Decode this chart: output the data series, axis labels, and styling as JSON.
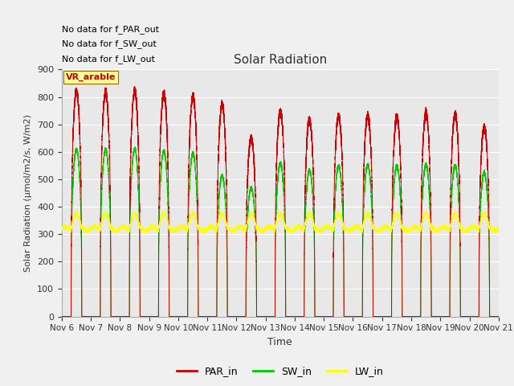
{
  "title": "Solar Radiation",
  "xlabel": "Time",
  "ylabel": "Solar Radiation (μmol/m2/s, W/m2)",
  "ylim": [
    0,
    900
  ],
  "num_days": 15,
  "x_tick_labels": [
    "Nov 6",
    "Nov 7",
    "Nov 8",
    "Nov 9",
    "Nov 10",
    "Nov 11",
    "Nov 12",
    "Nov 13",
    "Nov 14",
    "Nov 15",
    "Nov 16",
    "Nov 17",
    "Nov 18",
    "Nov 19",
    "Nov 20",
    "Nov 21"
  ],
  "legend_labels": [
    "PAR_in",
    "SW_in",
    "LW_in"
  ],
  "PAR_color": "#cc0000",
  "SW_color": "#00cc00",
  "LW_color": "#ffff00",
  "text_lines": [
    "No data for f_PAR_out",
    "No data for f_SW_out",
    "No data for f_LW_out"
  ],
  "annotation_text": "VR_arable",
  "annotation_color": "#cc0000",
  "annotation_bg": "#ffff99",
  "annotation_border": "#996600",
  "plot_bg_color": "#e8e8e8",
  "fig_bg_color": "#f0f0f0",
  "grid_color": "#ffffff",
  "days_peak_PAR": [
    820,
    815,
    820,
    810,
    800,
    770,
    650,
    745,
    715,
    730,
    730,
    725,
    740,
    735,
    690
  ],
  "days_peak_SW": [
    608,
    607,
    610,
    602,
    594,
    512,
    468,
    558,
    533,
    548,
    552,
    547,
    552,
    548,
    523
  ],
  "LW_base": 320,
  "LW_day_bump": 55,
  "sunrise_hour": 7.8,
  "sunset_hour": 16.5
}
